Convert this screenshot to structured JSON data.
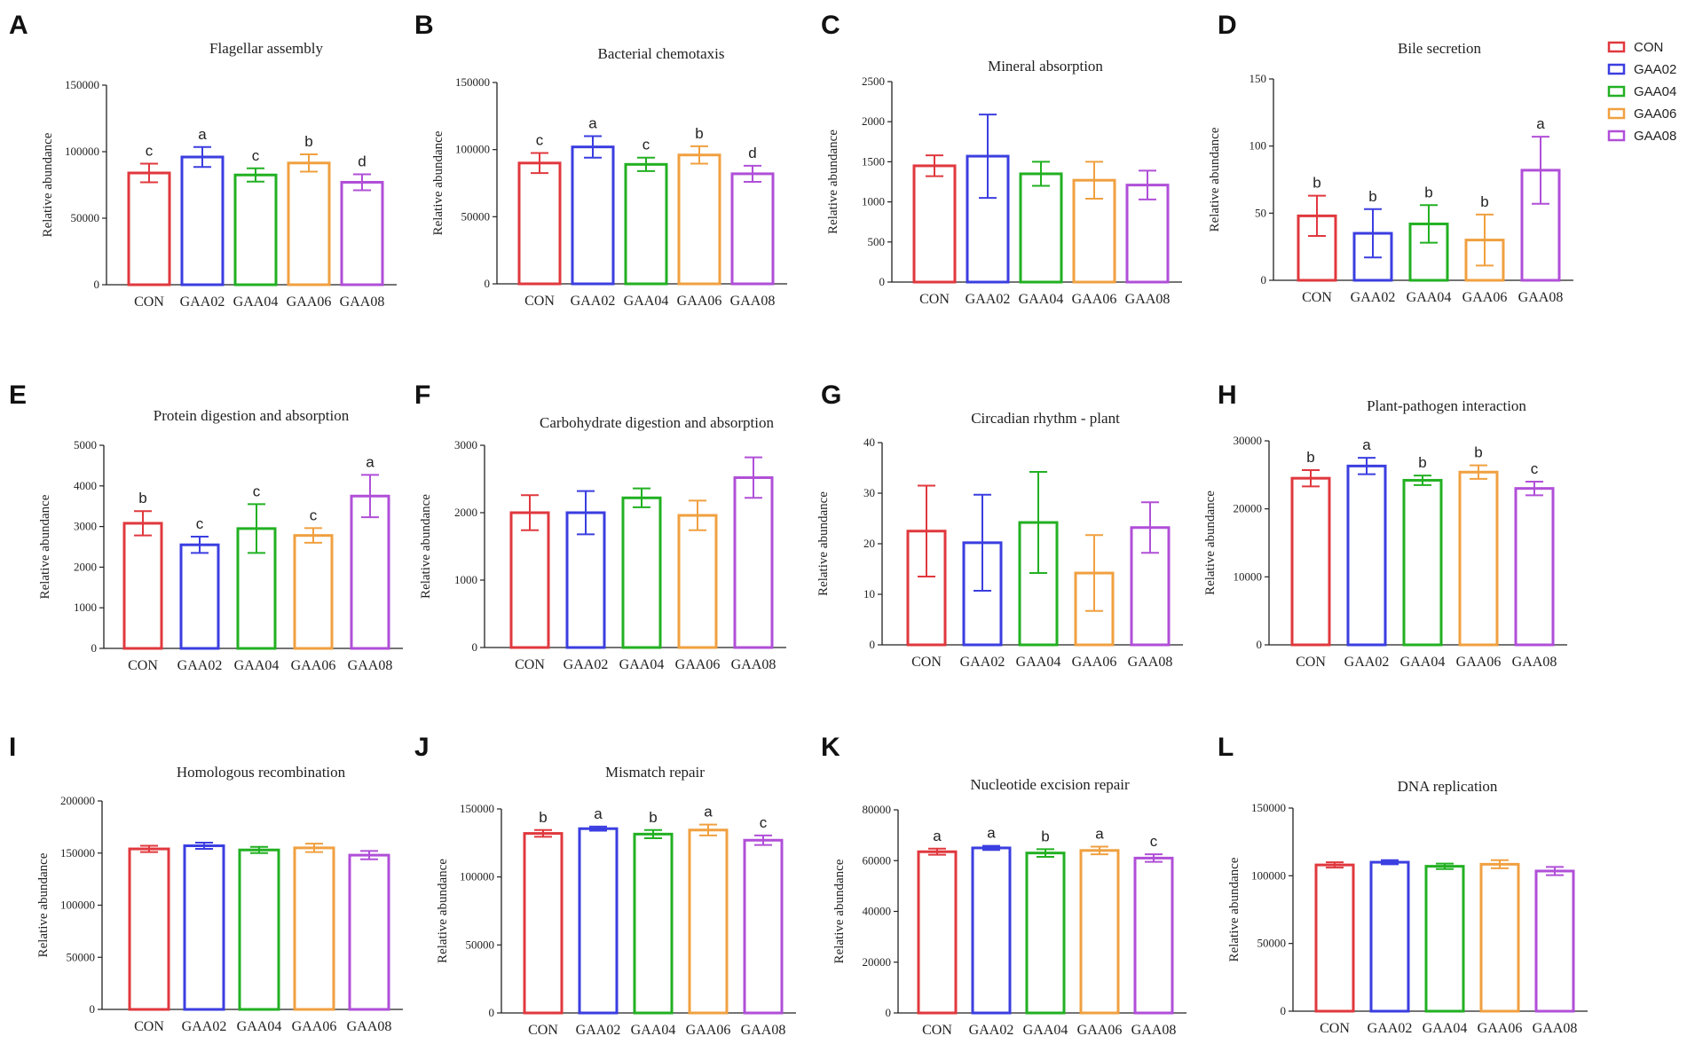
{
  "colors": {
    "CON": "#e0383e",
    "GAA02": "#3b3ee0",
    "GAA04": "#22b022",
    "GAA06": "#f0a040",
    "GAA08": "#b04fd8"
  },
  "legend": {
    "items": [
      "CON",
      "GAA02",
      "GAA04",
      "GAA06",
      "GAA08"
    ]
  },
  "chart_data": [
    {
      "id": "A",
      "type": "bar",
      "title": "Flagellar assembly",
      "ylabel": "Relative abundance",
      "categories": [
        "CON",
        "GAA02",
        "GAA04",
        "GAA06",
        "GAA08"
      ],
      "values": [
        84000,
        96000,
        82500,
        91500,
        77000
      ],
      "errors": [
        7000,
        7500,
        5000,
        6500,
        6000
      ],
      "significance": [
        "c",
        "a",
        "c",
        "b",
        "d"
      ],
      "ylim": [
        0,
        150000
      ],
      "yticks": [
        0,
        50000,
        100000,
        150000
      ],
      "ytick_labels": [
        "0",
        "50000",
        "100000",
        "150000"
      ]
    },
    {
      "id": "B",
      "type": "bar",
      "title": "Bacterial chemotaxis",
      "ylabel": "Relative abundance",
      "categories": [
        "CON",
        "GAA02",
        "GAA04",
        "GAA06",
        "GAA08"
      ],
      "values": [
        90000,
        102000,
        89000,
        96000,
        82000
      ],
      "errors": [
        7500,
        8000,
        5000,
        6500,
        6000
      ],
      "significance": [
        "c",
        "a",
        "c",
        "b",
        "d"
      ],
      "ylim": [
        0,
        150000
      ],
      "yticks": [
        0,
        50000,
        100000,
        150000
      ],
      "ytick_labels": [
        "0",
        "50000",
        "100000",
        "150000"
      ]
    },
    {
      "id": "C",
      "type": "bar",
      "title": "Mineral absorption",
      "ylabel": "Relative abundance",
      "categories": [
        "CON",
        "GAA02",
        "GAA04",
        "GAA06",
        "GAA08"
      ],
      "values": [
        1450,
        1570,
        1350,
        1270,
        1210
      ],
      "errors": [
        130,
        520,
        150,
        230,
        180
      ],
      "significance": [
        "",
        "",
        "",
        "",
        ""
      ],
      "ylim": [
        0,
        2500
      ],
      "yticks": [
        0,
        500,
        1000,
        1500,
        2000,
        2500
      ],
      "ytick_labels": [
        "0",
        "500",
        "1000",
        "1500",
        "2000",
        "2500"
      ]
    },
    {
      "id": "D",
      "type": "bar",
      "title": "Bile secretion",
      "ylabel": "Relative abundance",
      "categories": [
        "CON",
        "GAA02",
        "GAA04",
        "GAA06",
        "GAA08"
      ],
      "values": [
        48,
        35,
        42,
        30,
        82
      ],
      "errors": [
        15,
        18,
        14,
        19,
        25
      ],
      "significance": [
        "b",
        "b",
        "b",
        "b",
        "a"
      ],
      "ylim": [
        0,
        150
      ],
      "yticks": [
        0,
        50,
        100,
        150
      ],
      "ytick_labels": [
        "0",
        "50",
        "100",
        "150"
      ]
    },
    {
      "id": "E",
      "type": "bar",
      "title": "Protein digestion and absorption",
      "ylabel": "Relative abundance",
      "categories": [
        "CON",
        "GAA02",
        "GAA04",
        "GAA06",
        "GAA08"
      ],
      "values": [
        3080,
        2550,
        2950,
        2780,
        3750
      ],
      "errors": [
        300,
        200,
        600,
        180,
        520
      ],
      "significance": [
        "b",
        "c",
        "c",
        "c",
        "a"
      ],
      "ylim": [
        0,
        5000
      ],
      "yticks": [
        0,
        1000,
        2000,
        3000,
        4000,
        5000
      ],
      "ytick_labels": [
        "0",
        "1000",
        "2000",
        "3000",
        "4000",
        "5000"
      ]
    },
    {
      "id": "F",
      "type": "bar",
      "title": "Carbohydrate digestion and absorption",
      "ylabel": "Relative abundance",
      "categories": [
        "CON",
        "GAA02",
        "GAA04",
        "GAA06",
        "GAA08"
      ],
      "values": [
        2000,
        2000,
        2220,
        1960,
        2520
      ],
      "errors": [
        260,
        320,
        140,
        220,
        300
      ],
      "significance": [
        "",
        "",
        "",
        "",
        ""
      ],
      "ylim": [
        0,
        3000
      ],
      "yticks": [
        0,
        1000,
        2000,
        3000
      ],
      "ytick_labels": [
        "0",
        "1000",
        "2000",
        "3000"
      ]
    },
    {
      "id": "G",
      "type": "bar",
      "title": "Circadian rhythm - plant",
      "ylabel": "Relative abundance",
      "categories": [
        "CON",
        "GAA02",
        "GAA04",
        "GAA06",
        "GAA08"
      ],
      "values": [
        22.5,
        20.2,
        24.2,
        14.2,
        23.2
      ],
      "errors": [
        9,
        9.5,
        10,
        7.5,
        5
      ],
      "significance": [
        "",
        "",
        "",
        "",
        ""
      ],
      "ylim": [
        0,
        40
      ],
      "yticks": [
        0,
        10,
        20,
        30,
        40
      ],
      "ytick_labels": [
        "0",
        "10",
        "20",
        "30",
        "40"
      ]
    },
    {
      "id": "H",
      "type": "bar",
      "title": "Plant-pathogen interaction",
      "ylabel": "Relative abundance",
      "categories": [
        "CON",
        "GAA02",
        "GAA04",
        "GAA06",
        "GAA08"
      ],
      "values": [
        24500,
        26300,
        24200,
        25400,
        23000
      ],
      "errors": [
        1200,
        1200,
        700,
        1000,
        1000
      ],
      "significance": [
        "b",
        "a",
        "b",
        "b",
        "c"
      ],
      "ylim": [
        0,
        30000
      ],
      "yticks": [
        0,
        10000,
        20000,
        30000
      ],
      "ytick_labels": [
        "0",
        "10000",
        "20000",
        "30000"
      ]
    },
    {
      "id": "I",
      "type": "bar",
      "title": "Homologous recombination",
      "ylabel": "Relative abundance",
      "categories": [
        "CON",
        "GAA02",
        "GAA04",
        "GAA06",
        "GAA08"
      ],
      "values": [
        154000,
        157000,
        153000,
        155000,
        148000
      ],
      "errors": [
        3000,
        3000,
        3000,
        4000,
        4000
      ],
      "significance": [
        "",
        "",
        "",
        "",
        ""
      ],
      "ylim": [
        0,
        200000
      ],
      "yticks": [
        0,
        50000,
        100000,
        150000,
        200000
      ],
      "ytick_labels": [
        "0",
        "50000",
        "100000",
        "150000",
        "200000"
      ]
    },
    {
      "id": "J",
      "type": "bar",
      "title": "Mismatch repair",
      "ylabel": "Relative abundance",
      "categories": [
        "CON",
        "GAA02",
        "GAA04",
        "GAA06",
        "GAA08"
      ],
      "values": [
        132000,
        135500,
        131500,
        134500,
        127000
      ],
      "errors": [
        2500,
        1500,
        3000,
        4000,
        3500
      ],
      "significance": [
        "b",
        "a",
        "b",
        "a",
        "c"
      ],
      "ylim": [
        0,
        150000
      ],
      "yticks": [
        0,
        50000,
        100000,
        150000
      ],
      "ytick_labels": [
        "0",
        "50000",
        "100000",
        "150000"
      ]
    },
    {
      "id": "K",
      "type": "bar",
      "title": "Nucleotide excision repair",
      "ylabel": "Relative abundance",
      "categories": [
        "CON",
        "GAA02",
        "GAA04",
        "GAA06",
        "GAA08"
      ],
      "values": [
        63500,
        65000,
        63000,
        64000,
        61000
      ],
      "errors": [
        1200,
        800,
        1500,
        1500,
        1500
      ],
      "significance": [
        "a",
        "a",
        "b",
        "a",
        "c"
      ],
      "ylim": [
        0,
        80000
      ],
      "yticks": [
        0,
        20000,
        40000,
        60000,
        80000
      ],
      "ytick_labels": [
        "0",
        "20000",
        "40000",
        "60000",
        "80000"
      ]
    },
    {
      "id": "L",
      "type": "bar",
      "title": "DNA replication",
      "ylabel": "Relative abundance",
      "categories": [
        "CON",
        "GAA02",
        "GAA04",
        "GAA06",
        "GAA08"
      ],
      "values": [
        108000,
        110000,
        107000,
        108500,
        103500
      ],
      "errors": [
        2000,
        1500,
        2000,
        3000,
        3000
      ],
      "significance": [
        "",
        "",
        "",
        "",
        ""
      ],
      "ylim": [
        0,
        150000
      ],
      "yticks": [
        0,
        50000,
        100000,
        150000
      ],
      "ytick_labels": [
        "0",
        "50000",
        "100000",
        "150000"
      ]
    }
  ]
}
